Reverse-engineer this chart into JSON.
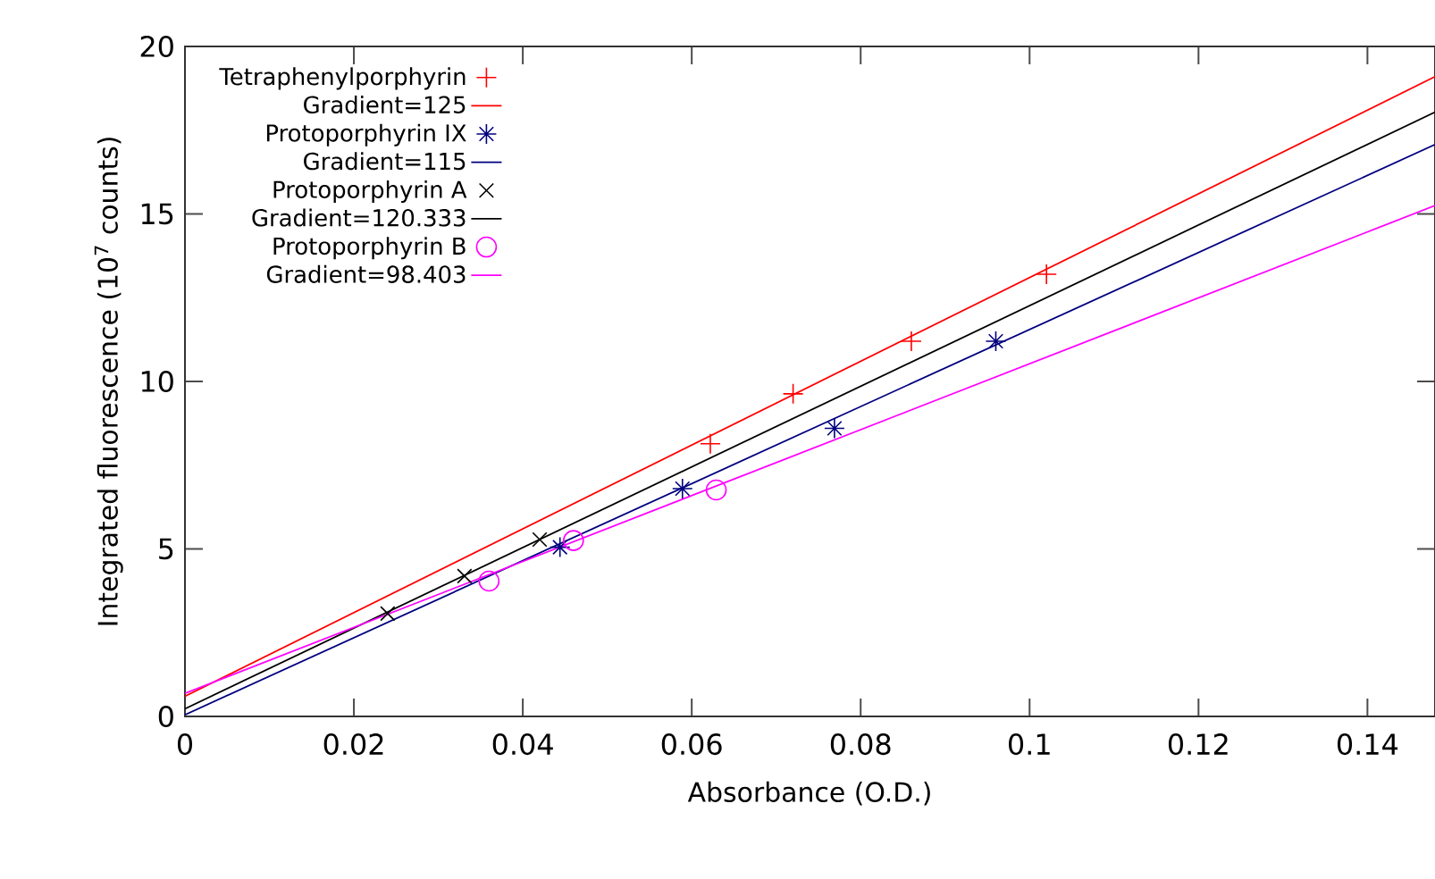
{
  "chart_data": {
    "type": "scatter",
    "xlabel": "Absorbance (O.D.)",
    "ylabel": "Integrated fluorescence (10$^{7}$ counts)",
    "xlim": [
      0,
      0.148
    ],
    "ylim": [
      0,
      20
    ],
    "xticks": [
      0,
      0.02,
      0.04,
      0.06,
      0.08,
      0.1,
      0.12,
      0.14
    ],
    "yticks": [
      0,
      5,
      10,
      15,
      20
    ],
    "legend": "top left",
    "grid": false,
    "series": [
      {
        "name": "Tetraphenylporphyrin",
        "type": "scatter",
        "marker": "plus",
        "color": "#ff0000",
        "x": [
          0.0622,
          0.072,
          0.086,
          0.102
        ],
        "values": [
          8.14,
          9.63,
          11.2,
          13.2
        ]
      },
      {
        "name": "Gradient=125",
        "type": "line",
        "line_style": "solid",
        "color": "#ff0000",
        "x": [
          0,
          0.148
        ],
        "values": [
          0.6,
          19.1
        ]
      },
      {
        "name": "Protoporphyrin IX",
        "type": "scatter",
        "marker": "cross",
        "color": "#00007f",
        "x": [
          0.0444,
          0.0589,
          0.0769,
          0.096
        ],
        "values": [
          5.05,
          6.8,
          8.6,
          11.2
        ]
      },
      {
        "name": "Gradient=115",
        "type": "line",
        "line_style": "solid",
        "color": "#00007f",
        "x": [
          0,
          0.148
        ],
        "values": [
          0.05,
          17.07
        ]
      },
      {
        "name": "Protoporphyrin A",
        "type": "scatter",
        "marker": "x",
        "color": "#000000",
        "x": [
          0.024,
          0.0331,
          0.042
        ],
        "values": [
          3.07,
          4.19,
          5.28
        ]
      },
      {
        "name": "Gradient=120.333",
        "type": "line",
        "line_style": "solid",
        "color": "#000000",
        "x": [
          0,
          0.148
        ],
        "values": [
          0.23,
          18.04
        ]
      },
      {
        "name": "Protoporphyrin B",
        "type": "scatter",
        "marker": "circle",
        "color": "#ff00ff",
        "x": [
          0.036,
          0.046,
          0.0629
        ],
        "values": [
          4.04,
          5.25,
          6.76
        ]
      },
      {
        "name": "Gradient=98.403",
        "type": "line",
        "line_style": "solid",
        "color": "#ff00ff",
        "x": [
          0,
          0.148
        ],
        "values": [
          0.69,
          15.25
        ]
      }
    ]
  }
}
